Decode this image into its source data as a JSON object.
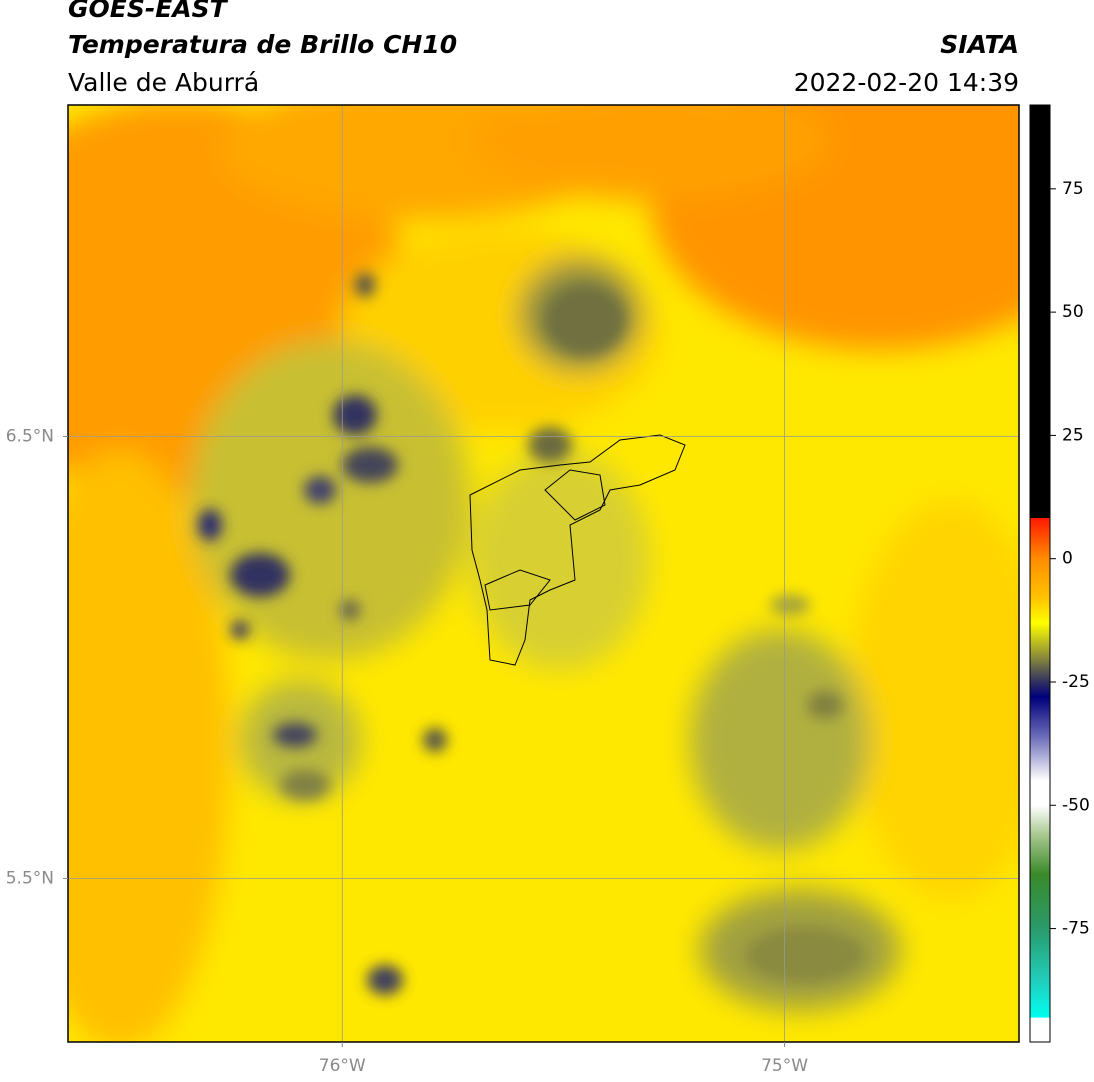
{
  "header": {
    "satellite": "GOES-EAST",
    "product": "Temperatura de Brillo CH10",
    "region": "Valle de Aburrá",
    "source": "SIATA",
    "datetime": "2022-02-20 14:39"
  },
  "map": {
    "xlim": [
      -76.62,
      -74.47
    ],
    "ylim": [
      5.13,
      7.25
    ],
    "xticks": [
      {
        "value": -76,
        "label": "76°W"
      },
      {
        "value": -75,
        "label": "75°W"
      }
    ],
    "yticks": [
      {
        "value": 6.5,
        "label": "6.5°N"
      },
      {
        "value": 5.5,
        "label": "5.5°N"
      }
    ],
    "grid": true
  },
  "colorbar": {
    "ylim": [
      -98,
      92
    ],
    "yticks": [
      75,
      50,
      25,
      0,
      -25,
      -50,
      -75
    ],
    "stops": [
      {
        "value": 92,
        "color": "#000000"
      },
      {
        "value": 8.3,
        "color": "#000000"
      },
      {
        "value": 8.2,
        "color": "#ff1a00"
      },
      {
        "value": 0,
        "color": "#ff8c00"
      },
      {
        "value": -8,
        "color": "#ffc400"
      },
      {
        "value": -13,
        "color": "#ffff00"
      },
      {
        "value": -20,
        "color": "#8a8a3a"
      },
      {
        "value": -25,
        "color": "#2f3060"
      },
      {
        "value": -28,
        "color": "#00007a"
      },
      {
        "value": -36,
        "color": "#6a6ab8"
      },
      {
        "value": -45,
        "color": "#ffffff"
      },
      {
        "value": -50,
        "color": "#ffffff"
      },
      {
        "value": -56,
        "color": "#a8c890"
      },
      {
        "value": -64,
        "color": "#3a8a2a"
      },
      {
        "value": -75,
        "color": "#2a9a6a"
      },
      {
        "value": -86,
        "color": "#20d0c0"
      },
      {
        "value": -93,
        "color": "#00ffee"
      },
      {
        "value": -93.1,
        "color": "#ffffff"
      },
      {
        "value": -98,
        "color": "#ffffff"
      }
    ]
  }
}
